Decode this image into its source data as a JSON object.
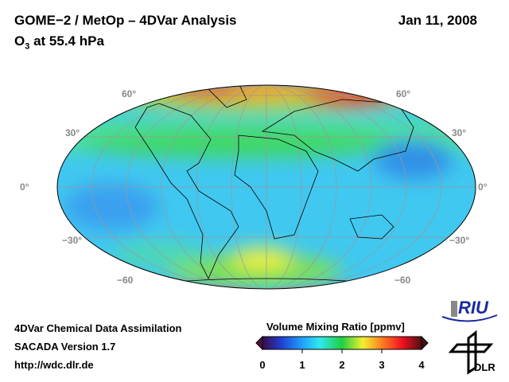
{
  "header": {
    "title": "GOME−2 / MetOp – 4DVar Analysis",
    "subtitle_species": "O",
    "subtitle_sub": "3",
    "subtitle_rest": " at 55.4 hPa",
    "date": "Jan 11, 2008"
  },
  "map": {
    "lat_labels_left": [
      "60°",
      "30°",
      "0°",
      "−30°",
      "−60"
    ],
    "lat_labels_right": [
      "60°",
      "30°",
      "0°",
      "−30°",
      "−60"
    ]
  },
  "footer": {
    "line1": "4DVar Chemical Data Assimilation",
    "line2": "SACADA Version 1.7",
    "line3": "http://wdc.dlr.de"
  },
  "chart_data": {
    "type": "heatmap",
    "title": "O3 at 55.4 hPa",
    "colorbar": {
      "label": "Volume Mixing Ratio [ppmv]",
      "ticks": [
        "0",
        "1",
        "2",
        "3",
        "4"
      ],
      "range": [
        0,
        4
      ],
      "colors": [
        "#3a0a4a",
        "#2040d0",
        "#20a0ff",
        "#30e8f0",
        "#20d040",
        "#f0f030",
        "#ff8020",
        "#f01020",
        "#501010"
      ]
    }
  },
  "logos": {
    "riu": "RIU",
    "dlr": "DLR"
  }
}
